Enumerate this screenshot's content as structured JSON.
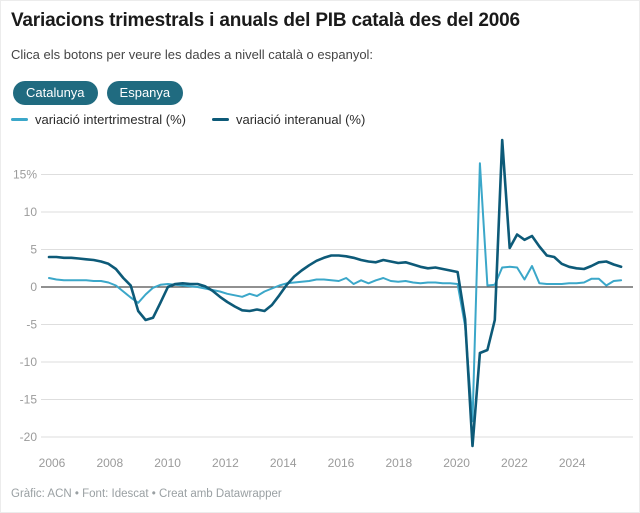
{
  "header": {
    "title": "Variacions trimestrals i anuals del PIB català des del 2006",
    "subtitle": "Clica els botons per veure les dades a nivell català o espanyol:"
  },
  "buttons": [
    {
      "label": "Catalunya"
    },
    {
      "label": "Espanya"
    }
  ],
  "legend": [
    {
      "label": "variació intertrimestral (%)",
      "color": "#3ba7c9"
    },
    {
      "label": "variació interanual (%)",
      "color": "#0d5a78"
    }
  ],
  "theme": {
    "button_bg": "#206b80",
    "accent_light": "#3ba7c9",
    "accent_dark": "#0d5a78",
    "grid_color": "#dedede",
    "zero_line_color": "#4d4d4d",
    "tick_label_color": "#9b9b9b"
  },
  "chart_data": {
    "type": "line",
    "title": "Variacions trimestrals i anuals del PIB català des del 2006",
    "x_unit": "quarter",
    "x_start": "2006-Q1",
    "x_end": "2025-Q2",
    "x_tick_labels": [
      "2006",
      "2008",
      "2010",
      "2012",
      "2014",
      "2016",
      "2018",
      "2020",
      "2022",
      "2024"
    ],
    "y_ticks": [
      {
        "label": "15%",
        "value": 15
      },
      {
        "label": "10",
        "value": 10
      },
      {
        "label": "5",
        "value": 5
      },
      {
        "label": "0",
        "value": 0
      },
      {
        "label": "-5",
        "value": -5
      },
      {
        "label": "-10",
        "value": -10
      },
      {
        "label": "-15",
        "value": -15
      },
      {
        "label": "-20",
        "value": -20
      }
    ],
    "ylim": [
      -22,
      20
    ],
    "grid": true,
    "legend_position": "top-left",
    "series": [
      {
        "name": "variació intertrimestral (%)",
        "color": "#3ba7c9",
        "width": 2,
        "values": [
          1.2,
          1.0,
          0.9,
          0.9,
          0.9,
          0.9,
          0.8,
          0.8,
          0.6,
          0.2,
          -0.6,
          -1.4,
          -2.1,
          -1.0,
          -0.1,
          0.3,
          0.4,
          0.3,
          0.2,
          0.1,
          0.0,
          -0.2,
          -0.4,
          -0.6,
          -0.9,
          -1.1,
          -1.3,
          -0.9,
          -1.2,
          -0.6,
          -0.2,
          0.2,
          0.5,
          0.6,
          0.7,
          0.8,
          1.0,
          1.0,
          0.9,
          0.8,
          1.2,
          0.4,
          0.9,
          0.5,
          0.9,
          1.2,
          0.8,
          0.7,
          0.8,
          0.6,
          0.5,
          0.6,
          0.6,
          0.5,
          0.5,
          0.4,
          -5.2,
          -17.9,
          16.5,
          0.2,
          0.3,
          2.6,
          2.7,
          2.6,
          1.0,
          2.8,
          0.5,
          0.4,
          0.4,
          0.4,
          0.5,
          0.5,
          0.6,
          1.1,
          1.1,
          0.2,
          0.8,
          0.9
        ]
      },
      {
        "name": "variació interanual (%)",
        "color": "#0d5a78",
        "width": 2.6,
        "values": [
          4.0,
          4.0,
          3.9,
          3.9,
          3.8,
          3.7,
          3.6,
          3.4,
          3.1,
          2.4,
          1.2,
          0.2,
          -3.2,
          -4.4,
          -4.1,
          -2.1,
          0.0,
          0.4,
          0.5,
          0.4,
          0.4,
          0.1,
          -0.5,
          -1.3,
          -2.0,
          -2.6,
          -3.1,
          -3.2,
          -3.0,
          -3.2,
          -2.4,
          -1.1,
          0.3,
          1.4,
          2.2,
          2.9,
          3.5,
          3.9,
          4.2,
          4.2,
          4.1,
          3.9,
          3.6,
          3.4,
          3.3,
          3.6,
          3.4,
          3.2,
          3.3,
          3.0,
          2.7,
          2.5,
          2.6,
          2.4,
          2.2,
          2.0,
          -4.3,
          -21.2,
          -8.8,
          -8.4,
          -4.4,
          19.6,
          5.2,
          7.0,
          6.3,
          6.8,
          5.4,
          4.2,
          4.0,
          3.1,
          2.7,
          2.5,
          2.4,
          2.8,
          3.3,
          3.4,
          3.0,
          2.7
        ]
      }
    ]
  },
  "footer": {
    "text": "Gràfic: ACN • Font: Idescat • Creat amb Datawrapper"
  }
}
